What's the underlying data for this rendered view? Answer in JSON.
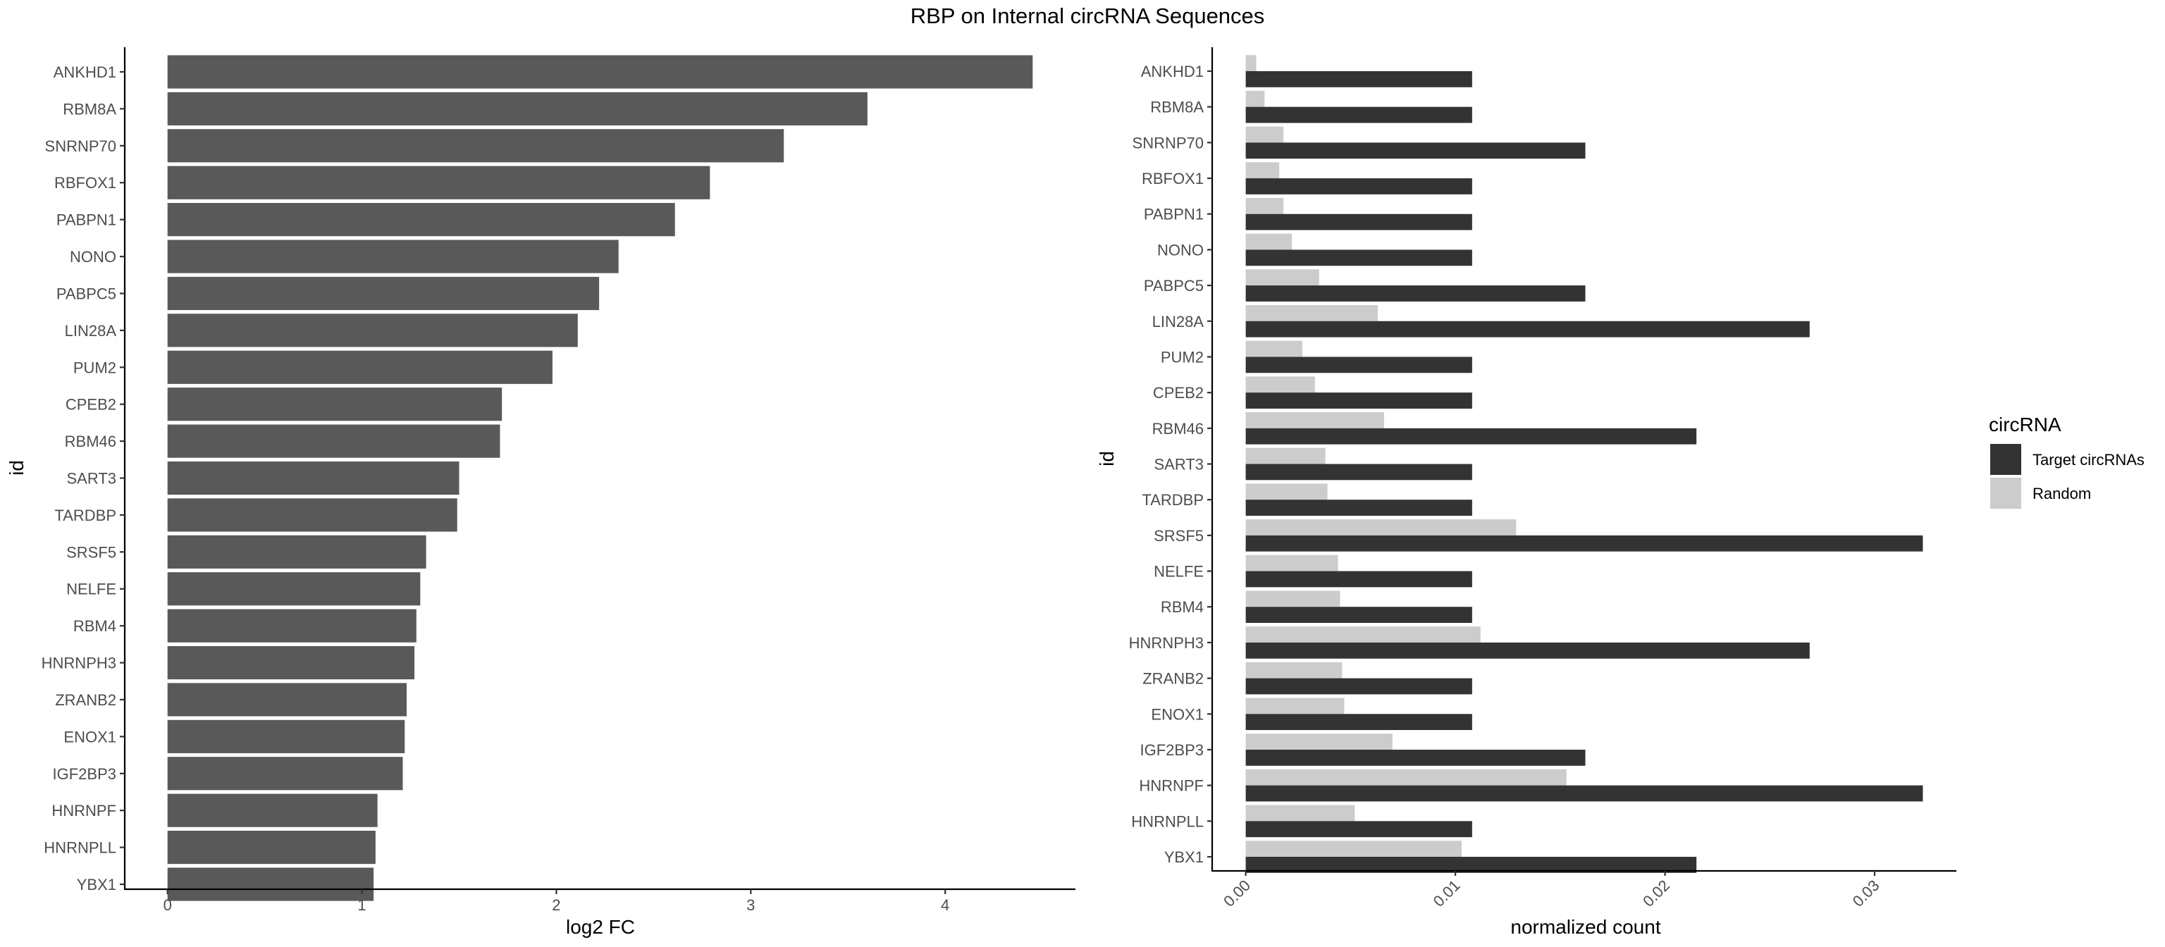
{
  "title": "RBP on Internal circRNA Sequences",
  "chart_data": [
    {
      "type": "bar",
      "orientation": "horizontal",
      "categories": [
        "ANKHD1",
        "RBM8A",
        "SNRNP70",
        "RBFOX1",
        "PABPN1",
        "NONO",
        "PABPC5",
        "LIN28A",
        "PUM2",
        "CPEB2",
        "RBM46",
        "SART3",
        "TARDBP",
        "SRSF5",
        "NELFE",
        "RBM4",
        "HNRNPH3",
        "ZRANB2",
        "ENOX1",
        "IGF2BP3",
        "HNRNPF",
        "HNRNPLL",
        "YBX1"
      ],
      "values": [
        4.45,
        3.6,
        3.17,
        2.79,
        2.61,
        2.32,
        2.22,
        2.11,
        1.98,
        1.72,
        1.71,
        1.5,
        1.49,
        1.33,
        1.3,
        1.28,
        1.27,
        1.23,
        1.22,
        1.21,
        1.08,
        1.07,
        1.06
      ],
      "xlabel": "log2 FC",
      "ylabel": "id",
      "xlim": [
        -0.22,
        4.67
      ],
      "xticks": [
        0,
        1,
        2,
        3,
        4
      ],
      "xtick_labels": [
        "0",
        "1",
        "2",
        "3",
        "4"
      ],
      "bar_color": "#595959",
      "grid": false
    },
    {
      "type": "bar",
      "orientation": "horizontal",
      "grouped": true,
      "categories": [
        "ANKHD1",
        "RBM8A",
        "SNRNP70",
        "RBFOX1",
        "PABPN1",
        "NONO",
        "PABPC5",
        "LIN28A",
        "PUM2",
        "CPEB2",
        "RBM46",
        "SART3",
        "TARDBP",
        "SRSF5",
        "NELFE",
        "RBM4",
        "HNRNPH3",
        "ZRANB2",
        "ENOX1",
        "IGF2BP3",
        "HNRNPF",
        "HNRNPLL",
        "YBX1"
      ],
      "series": [
        {
          "name": "Target circRNAs",
          "color": "#333333",
          "values": [
            0.0108,
            0.0108,
            0.0162,
            0.0108,
            0.0108,
            0.0108,
            0.0162,
            0.0269,
            0.0108,
            0.0108,
            0.0215,
            0.0108,
            0.0108,
            0.0323,
            0.0108,
            0.0108,
            0.0269,
            0.0108,
            0.0108,
            0.0162,
            0.0323,
            0.0108,
            0.0215
          ]
        },
        {
          "name": "Random",
          "color": "#cccccc",
          "values": [
            0.0005,
            0.0009,
            0.0018,
            0.0016,
            0.0018,
            0.0022,
            0.0035,
            0.0063,
            0.0027,
            0.0033,
            0.0066,
            0.0038,
            0.0039,
            0.0129,
            0.0044,
            0.0045,
            0.0112,
            0.0046,
            0.0047,
            0.007,
            0.0153,
            0.0052,
            0.0103
          ]
        }
      ],
      "xlabel": "normalized count",
      "ylabel": "id",
      "xlim": [
        -0.0016,
        0.0339
      ],
      "xticks": [
        0,
        0.01,
        0.02,
        0.03
      ],
      "xtick_labels": [
        "0.00",
        "0.01",
        "0.02",
        "0.03"
      ],
      "legend": {
        "title": "circRNA",
        "position": "right"
      },
      "grid": false
    }
  ]
}
